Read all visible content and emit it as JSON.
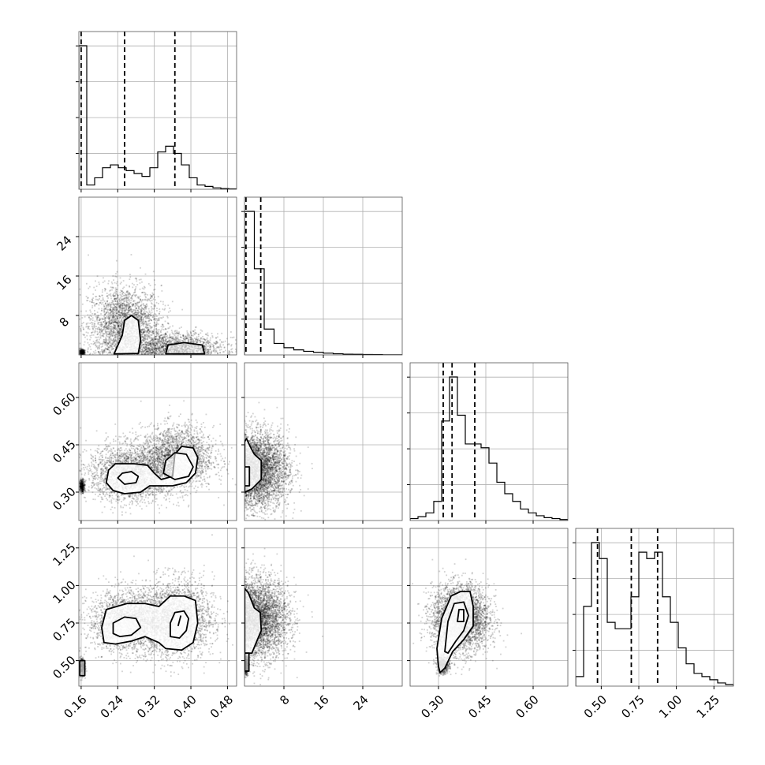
{
  "chart_data": {
    "type": "corner",
    "parameters": [
      {
        "key": "p0",
        "lim": [
          0.155,
          0.5
        ],
        "ticks": [
          0.16,
          0.24,
          0.32,
          0.4,
          0.48
        ],
        "tick_labels": [
          "0.16",
          "0.24",
          "0.32",
          "0.40",
          "0.48"
        ],
        "quantiles": [
          0.16,
          0.255,
          0.365
        ]
      },
      {
        "key": "p1",
        "lim": [
          0,
          32
        ],
        "ticks": [
          8,
          16,
          24
        ],
        "tick_labels": [
          "8",
          "16",
          "24"
        ],
        "quantiles": [
          0.3,
          3.3
        ]
      },
      {
        "key": "p2",
        "lim": [
          0.21,
          0.71
        ],
        "ticks": [
          0.3,
          0.45,
          0.6
        ],
        "tick_labels": [
          "0.30",
          "0.45",
          "0.60"
        ],
        "quantiles": [
          0.315,
          0.343,
          0.415
        ]
      },
      {
        "key": "p3",
        "lim": [
          0.33,
          1.38
        ],
        "ticks": [
          0.5,
          0.75,
          1.0,
          1.25
        ],
        "tick_labels": [
          "0.50",
          "0.75",
          "1.00",
          "1.25"
        ],
        "quantiles": [
          0.475,
          0.7,
          0.875
        ]
      }
    ],
    "histograms": [
      {
        "param": 0,
        "bins": [
          0.155,
          0.5
        ],
        "counts": [
          100,
          3,
          8,
          15,
          17,
          15,
          13,
          11,
          9,
          15,
          26,
          30,
          25,
          17,
          8,
          3,
          2,
          1,
          0.5,
          0.3
        ]
      },
      {
        "param": 1,
        "bins": [
          0,
          32
        ],
        "counts": [
          100,
          60,
          18,
          8,
          5,
          3.5,
          2.5,
          1.8,
          1.2,
          0.8,
          0.5,
          0.4,
          0.3,
          0.2,
          0.1,
          0.05
        ]
      },
      {
        "param": 2,
        "bins": [
          0.21,
          0.71
        ],
        "counts": [
          1,
          2,
          4,
          10,
          52,
          75,
          55,
          40,
          40,
          38,
          30,
          20,
          14,
          10,
          6,
          4,
          2.5,
          1.5,
          1,
          0.5
        ]
      },
      {
        "param": 3,
        "bins": [
          0.33,
          1.38
        ],
        "counts": [
          3,
          25,
          45,
          40,
          20,
          18,
          18,
          28,
          42,
          40,
          42,
          28,
          20,
          12,
          7,
          4,
          3,
          2,
          1,
          0.5
        ]
      }
    ],
    "pairs": [
      {
        "x": 0,
        "y": 1,
        "clusters": [
          {
            "x": 0.255,
            "y": 6,
            "sx": 0.04,
            "sy": 4,
            "n": 2600
          },
          {
            "x": 0.37,
            "y": 1.5,
            "sx": 0.05,
            "sy": 1.5,
            "n": 1500
          },
          {
            "x": 0.162,
            "y": 0.5,
            "sx": 0.003,
            "sy": 0.3,
            "n": 300
          }
        ]
      },
      {
        "x": 0,
        "y": 2,
        "clusters": [
          {
            "x": 0.265,
            "y": 0.36,
            "sx": 0.045,
            "sy": 0.045,
            "n": 2200
          },
          {
            "x": 0.37,
            "y": 0.41,
            "sx": 0.04,
            "sy": 0.05,
            "n": 2200
          },
          {
            "x": 0.162,
            "y": 0.32,
            "sx": 0.003,
            "sy": 0.01,
            "n": 300
          }
        ]
      },
      {
        "x": 1,
        "y": 2,
        "clusters": [
          {
            "x": 3,
            "y": 0.37,
            "sx": 3,
            "sy": 0.06,
            "n": 3600
          },
          {
            "x": 0.3,
            "y": 0.32,
            "sx": 0.2,
            "sy": 0.01,
            "n": 500
          }
        ]
      },
      {
        "x": 0,
        "y": 3,
        "clusters": [
          {
            "x": 0.265,
            "y": 0.76,
            "sx": 0.045,
            "sy": 0.1,
            "n": 2200
          },
          {
            "x": 0.37,
            "y": 0.78,
            "sx": 0.04,
            "sy": 0.13,
            "n": 2200
          },
          {
            "x": 0.162,
            "y": 0.46,
            "sx": 0.003,
            "sy": 0.03,
            "n": 300
          }
        ]
      },
      {
        "x": 1,
        "y": 3,
        "clusters": [
          {
            "x": 3,
            "y": 0.78,
            "sx": 3,
            "sy": 0.13,
            "n": 3600
          },
          {
            "x": 0.3,
            "y": 0.47,
            "sx": 0.2,
            "sy": 0.03,
            "n": 500
          }
        ]
      },
      {
        "x": 2,
        "y": 3,
        "clusters": [
          {
            "x": 0.37,
            "y": 0.78,
            "sx": 0.045,
            "sy": 0.11,
            "n": 3600
          },
          {
            "x": 0.315,
            "y": 0.47,
            "sx": 0.01,
            "sy": 0.03,
            "n": 500
          }
        ]
      }
    ],
    "contours": [
      {
        "x": 0,
        "y": 1,
        "rings": [
          [
            [
              0.232,
              0.2
            ],
            [
              0.25,
              4
            ],
            [
              0.255,
              7
            ],
            [
              0.27,
              8
            ],
            [
              0.285,
              7
            ],
            [
              0.29,
              3
            ],
            [
              0.285,
              0.3
            ]
          ],
          [
            [
              0.345,
              0.2
            ],
            [
              0.35,
              2
            ],
            [
              0.385,
              2.5
            ],
            [
              0.425,
              2
            ],
            [
              0.43,
              0.2
            ]
          ]
        ]
      },
      {
        "x": 0,
        "y": 2,
        "rings": [
          [
            [
              0.215,
              0.33
            ],
            [
              0.22,
              0.37
            ],
            [
              0.235,
              0.39
            ],
            [
              0.275,
              0.39
            ],
            [
              0.305,
              0.385
            ],
            [
              0.32,
              0.36
            ],
            [
              0.335,
              0.34
            ],
            [
              0.36,
              0.35
            ],
            [
              0.365,
              0.42
            ],
            [
              0.38,
              0.445
            ],
            [
              0.405,
              0.44
            ],
            [
              0.415,
              0.41
            ],
            [
              0.41,
              0.36
            ],
            [
              0.39,
              0.33
            ],
            [
              0.36,
              0.32
            ],
            [
              0.335,
              0.32
            ],
            [
              0.31,
              0.32
            ],
            [
              0.29,
              0.3
            ],
            [
              0.255,
              0.295
            ],
            [
              0.23,
              0.305
            ]
          ],
          [
            [
              0.24,
              0.345
            ],
            [
              0.25,
              0.36
            ],
            [
              0.27,
              0.365
            ],
            [
              0.285,
              0.35
            ],
            [
              0.28,
              0.33
            ],
            [
              0.255,
              0.325
            ]
          ],
          [
            [
              0.34,
              0.36
            ],
            [
              0.345,
              0.4
            ],
            [
              0.365,
              0.425
            ],
            [
              0.39,
              0.42
            ],
            [
              0.405,
              0.38
            ],
            [
              0.395,
              0.35
            ],
            [
              0.365,
              0.34
            ]
          ],
          [
            [
              0.163,
              0.3
            ],
            [
              0.163,
              0.33
            ]
          ]
        ]
      },
      {
        "x": 1,
        "y": 2,
        "rings": [
          [
            [
              0.05,
              0.3
            ],
            [
              1.5,
              0.31
            ],
            [
              3.4,
              0.34
            ],
            [
              3.4,
              0.4
            ],
            [
              2,
              0.42
            ],
            [
              1.3,
              0.44
            ],
            [
              0.4,
              0.47
            ],
            [
              0.05,
              0.46
            ]
          ],
          [
            [
              0.05,
              0.32
            ],
            [
              1.0,
              0.32
            ],
            [
              1.0,
              0.38
            ],
            [
              0.05,
              0.38
            ]
          ]
        ]
      },
      {
        "x": 0,
        "y": 3,
        "rings": [
          [
            [
              0.21,
              0.62
            ],
            [
              0.205,
              0.72
            ],
            [
              0.215,
              0.84
            ],
            [
              0.26,
              0.88
            ],
            [
              0.3,
              0.88
            ],
            [
              0.33,
              0.86
            ],
            [
              0.355,
              0.93
            ],
            [
              0.385,
              0.93
            ],
            [
              0.41,
              0.9
            ],
            [
              0.415,
              0.75
            ],
            [
              0.405,
              0.62
            ],
            [
              0.38,
              0.57
            ],
            [
              0.345,
              0.58
            ],
            [
              0.33,
              0.62
            ],
            [
              0.3,
              0.66
            ],
            [
              0.27,
              0.63
            ],
            [
              0.235,
              0.61
            ]
          ],
          [
            [
              0.23,
              0.68
            ],
            [
              0.23,
              0.75
            ],
            [
              0.255,
              0.79
            ],
            [
              0.28,
              0.78
            ],
            [
              0.29,
              0.72
            ],
            [
              0.27,
              0.67
            ],
            [
              0.245,
              0.66
            ]
          ],
          [
            [
              0.355,
              0.66
            ],
            [
              0.355,
              0.75
            ],
            [
              0.365,
              0.82
            ],
            [
              0.385,
              0.83
            ],
            [
              0.395,
              0.78
            ],
            [
              0.39,
              0.7
            ],
            [
              0.375,
              0.65
            ]
          ],
          [
            [
              0.372,
              0.73
            ],
            [
              0.378,
              0.8
            ]
          ],
          [
            [
              0.157,
              0.4
            ],
            [
              0.157,
              0.5
            ],
            [
              0.168,
              0.5
            ],
            [
              0.168,
              0.4
            ]
          ]
        ]
      },
      {
        "x": 1,
        "y": 3,
        "rings": [
          [
            [
              0.05,
              0.55
            ],
            [
              1.5,
              0.55
            ],
            [
              3.4,
              0.7
            ],
            [
              3.2,
              0.82
            ],
            [
              2,
              0.85
            ],
            [
              0.8,
              0.95
            ],
            [
              0.05,
              0.98
            ]
          ],
          [
            [
              0.05,
              0.43
            ],
            [
              0.9,
              0.43
            ],
            [
              0.9,
              0.55
            ],
            [
              0.05,
              0.55
            ]
          ]
        ]
      },
      {
        "x": 2,
        "y": 3,
        "rings": [
          [
            [
              0.3,
              0.46
            ],
            [
              0.295,
              0.58
            ],
            [
              0.31,
              0.78
            ],
            [
              0.34,
              0.93
            ],
            [
              0.37,
              0.96
            ],
            [
              0.4,
              0.96
            ],
            [
              0.41,
              0.86
            ],
            [
              0.41,
              0.73
            ],
            [
              0.38,
              0.64
            ],
            [
              0.345,
              0.56
            ],
            [
              0.32,
              0.45
            ],
            [
              0.305,
              0.42
            ]
          ],
          [
            [
              0.32,
              0.56
            ],
            [
              0.33,
              0.76
            ],
            [
              0.35,
              0.88
            ],
            [
              0.38,
              0.89
            ],
            [
              0.395,
              0.8
            ],
            [
              0.38,
              0.7
            ],
            [
              0.355,
              0.63
            ],
            [
              0.33,
              0.55
            ]
          ],
          [
            [
              0.36,
              0.76
            ],
            [
              0.365,
              0.84
            ],
            [
              0.38,
              0.84
            ],
            [
              0.38,
              0.76
            ]
          ]
        ]
      }
    ]
  }
}
